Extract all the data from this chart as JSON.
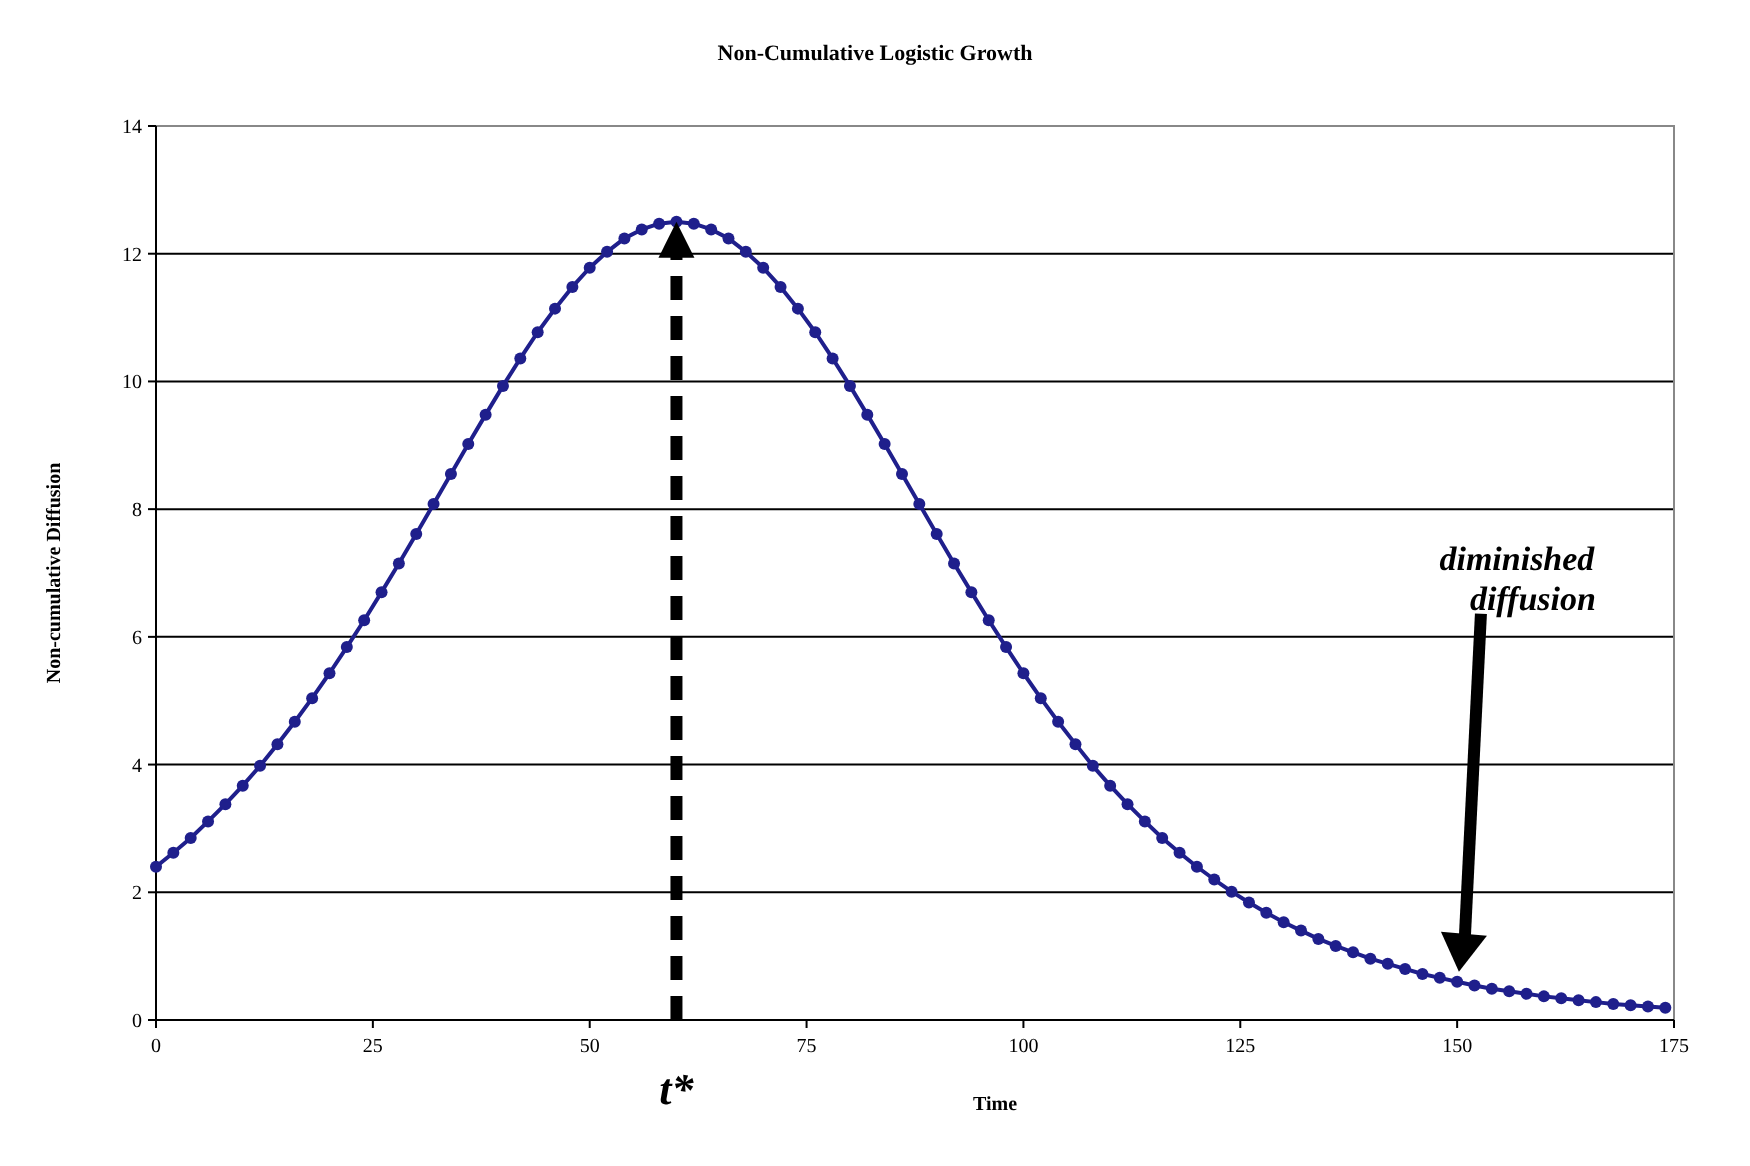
{
  "chart_data": {
    "type": "line",
    "title": "Non-Cumulative Logistic Growth",
    "xlabel": "Time",
    "ylabel": "Non-cumulative Diffusion",
    "x": [
      0,
      2,
      4,
      6,
      8,
      10,
      12,
      14,
      16,
      18,
      20,
      22,
      24,
      26,
      28,
      30,
      32,
      34,
      36,
      38,
      40,
      42,
      44,
      46,
      48,
      50,
      52,
      54,
      56,
      58,
      60,
      62,
      64,
      66,
      68,
      70,
      72,
      74,
      76,
      78,
      80,
      82,
      84,
      86,
      88,
      90,
      92,
      94,
      96,
      98,
      100,
      102,
      104,
      106,
      108,
      110,
      112,
      114,
      116,
      118,
      120,
      122,
      124,
      126,
      128,
      130,
      132,
      134,
      136,
      138,
      140,
      142,
      144,
      146,
      148,
      150,
      152,
      154,
      156,
      158,
      160,
      162,
      164,
      166,
      168,
      170,
      172,
      174
    ],
    "series": [
      {
        "color": "#1f1f8c",
        "values": [
          2.4,
          2.62,
          2.85,
          3.11,
          3.38,
          3.67,
          3.98,
          4.32,
          4.67,
          5.04,
          5.43,
          5.84,
          6.26,
          6.7,
          7.15,
          7.61,
          8.08,
          8.55,
          9.02,
          9.48,
          9.93,
          10.36,
          10.77,
          11.14,
          11.48,
          11.78,
          12.03,
          12.24,
          12.38,
          12.47,
          12.5,
          12.47,
          12.38,
          12.24,
          12.03,
          11.78,
          11.48,
          11.14,
          10.77,
          10.36,
          9.93,
          9.48,
          9.02,
          8.55,
          8.08,
          7.61,
          7.15,
          6.7,
          6.26,
          5.84,
          5.43,
          5.04,
          4.67,
          4.32,
          3.98,
          3.67,
          3.38,
          3.11,
          2.85,
          2.62,
          2.4,
          2.2,
          2.01,
          1.84,
          1.68,
          1.53,
          1.4,
          1.27,
          1.16,
          1.06,
          0.96,
          0.88,
          0.8,
          0.72,
          0.66,
          0.6,
          0.54,
          0.49,
          0.45,
          0.41,
          0.37,
          0.34,
          0.31,
          0.28,
          0.25,
          0.23,
          0.21,
          0.19
        ]
      }
    ],
    "xlim": [
      0,
      175
    ],
    "xticks": [
      0,
      25,
      50,
      75,
      100,
      125,
      150,
      175
    ],
    "ylim": [
      0,
      14
    ],
    "yticks": [
      0,
      2,
      4,
      6,
      8,
      10,
      12,
      14
    ],
    "grid": "y",
    "marker": "circle",
    "ref_lines": [
      {
        "axis": "x",
        "value": 60,
        "label": "t*",
        "color": "#000000",
        "line_style": "dashed"
      }
    ],
    "annotations": [
      "diminished diffusion"
    ]
  }
}
